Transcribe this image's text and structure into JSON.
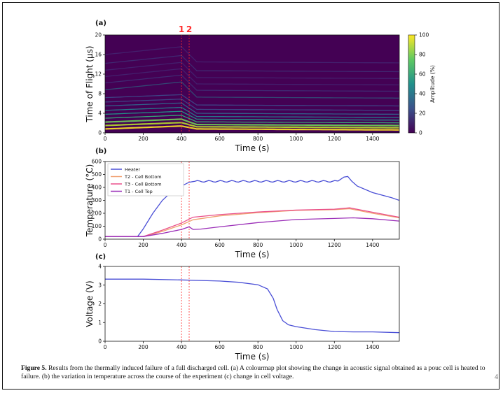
{
  "caption": {
    "label": "Figure 5.",
    "text": "Results from the thermally induced failure of a full discharged cell. (a) A colourmap plot showing the change in acoustic signal obtained as a pouc cell is heated to failure. (b) the variation in temperature across the course of the experiment (c) change in cell voltage."
  },
  "page_mark": "4",
  "colors": {
    "heater": "#4a4fd6",
    "t2": "#f0a070",
    "t3": "#ea4f8a",
    "t1": "#9b2fb8",
    "voltage": "#4a4fd6",
    "marker": "#ff2a2a"
  },
  "chart_data": [
    {
      "type": "heatmap",
      "panel_label": "(a)",
      "xlabel": "Time (s)",
      "ylabel": "Time of Flight (µs)",
      "xlim": [
        0,
        1540
      ],
      "ylim": [
        0,
        20
      ],
      "xticks": [
        0,
        200,
        400,
        600,
        800,
        1000,
        1200,
        1400
      ],
      "yticks": [
        0,
        4,
        8,
        12,
        16,
        20
      ],
      "colorbar": {
        "label": "Amplitude (%)",
        "ticks": [
          0,
          20,
          40,
          60,
          80,
          100
        ]
      },
      "markers": [
        {
          "label": "1",
          "x": 400
        },
        {
          "label": "2",
          "x": 440
        }
      ],
      "bright_bands_tof": [
        0.8,
        1.5,
        2.2,
        3.0,
        3.8,
        4.6,
        5.5,
        6.3,
        7.2,
        8.8,
        10.2,
        11.5,
        12.8,
        14.2,
        16.0
      ]
    },
    {
      "type": "line",
      "panel_label": "(b)",
      "xlabel": "Time (s)",
      "ylabel": "Temperature (°C)",
      "xlim": [
        0,
        1540
      ],
      "ylim": [
        0,
        600
      ],
      "xticks": [
        0,
        200,
        400,
        600,
        800,
        1000,
        1200,
        1400
      ],
      "yticks": [
        0,
        100,
        200,
        300,
        400,
        500,
        600
      ],
      "legend": {
        "position": "top-left"
      },
      "series": [
        {
          "name": "Heater",
          "key": "heater",
          "x": [
            0,
            170,
            200,
            250,
            300,
            350,
            400,
            440,
            460,
            1220,
            1250,
            1270,
            1290,
            1320,
            1400,
            1500,
            1540
          ],
          "y": [
            20,
            20,
            80,
            200,
            300,
            370,
            410,
            440,
            445,
            450,
            480,
            485,
            450,
            410,
            360,
            320,
            300
          ]
        },
        {
          "name": "T2 - Cell Bottom",
          "key": "t2",
          "x": [
            0,
            200,
            300,
            400,
            460,
            600,
            800,
            1000,
            1200,
            1280,
            1400,
            1540
          ],
          "y": [
            20,
            20,
            60,
            110,
            150,
            180,
            205,
            222,
            228,
            235,
            200,
            165
          ]
        },
        {
          "name": "T3 - Cell Bottom",
          "key": "t3",
          "x": [
            0,
            200,
            300,
            400,
            460,
            600,
            800,
            1000,
            1200,
            1280,
            1400,
            1540
          ],
          "y": [
            20,
            20,
            70,
            125,
            170,
            190,
            210,
            225,
            232,
            242,
            208,
            170
          ]
        },
        {
          "name": "T1 - Cell Top",
          "key": "t1",
          "x": [
            0,
            200,
            300,
            400,
            440,
            460,
            500,
            600,
            800,
            1000,
            1200,
            1300,
            1400,
            1540
          ],
          "y": [
            20,
            20,
            45,
            75,
            95,
            75,
            78,
            95,
            128,
            152,
            160,
            165,
            158,
            140
          ]
        }
      ]
    },
    {
      "type": "line",
      "panel_label": "(c)",
      "xlabel": "Time (s)",
      "ylabel": "Voltage (V)",
      "xlim": [
        0,
        1540
      ],
      "ylim": [
        0,
        4
      ],
      "xticks": [
        0,
        200,
        400,
        600,
        800,
        1000,
        1200,
        1400
      ],
      "yticks": [
        0,
        1,
        2,
        3,
        4
      ],
      "series": [
        {
          "name": "Voltage",
          "key": "voltage",
          "x": [
            0,
            200,
            400,
            600,
            700,
            800,
            850,
            880,
            900,
            930,
            960,
            1000,
            1100,
            1200,
            1300,
            1400,
            1540
          ],
          "y": [
            3.32,
            3.32,
            3.28,
            3.22,
            3.15,
            3.02,
            2.8,
            2.3,
            1.7,
            1.1,
            0.88,
            0.78,
            0.62,
            0.52,
            0.5,
            0.5,
            0.46
          ]
        }
      ]
    }
  ]
}
